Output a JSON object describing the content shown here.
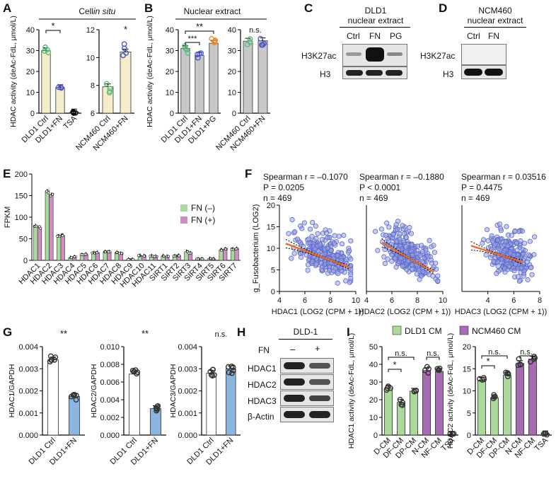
{
  "panel_labels": {
    "A": "A",
    "B": "B",
    "C": "C",
    "D": "D",
    "E": "E",
    "F": "F",
    "G": "G",
    "H": "H",
    "I": "I"
  },
  "chart_data": [
    {
      "id": "A1",
      "type": "bar",
      "title": "Cell in situ",
      "ylabel": "HDAC activity (deAc-FdL, μmol/L)",
      "categories": [
        "DLD1 Ctrl",
        "DLD1+FN",
        "TSA"
      ],
      "values": [
        30,
        12.3,
        0.6
      ],
      "ylim": [
        0,
        40
      ],
      "yticks": [
        "0",
        "10",
        "20",
        "30",
        "40"
      ],
      "sig": [
        {
          "from": 0,
          "to": 1,
          "label": "*"
        }
      ]
    },
    {
      "id": "A2",
      "type": "bar",
      "categories": [
        "NCM460 Ctrl",
        "NCM460+FN"
      ],
      "values": [
        7.9,
        10.4
      ],
      "ylim": [
        6,
        12
      ],
      "yticks": [
        "6",
        "8",
        "10",
        "12"
      ],
      "sig": [
        {
          "label": "*"
        }
      ]
    },
    {
      "id": "B1",
      "type": "bar",
      "title": "Nuclear extract",
      "ylabel": "HDAC activity (deAc-FdL, μmol/L)",
      "categories": [
        "DLD1 Ctrl",
        "DLD1+FN",
        "DLD1+PG"
      ],
      "values": [
        31,
        27.7,
        33.5
      ],
      "ylim": [
        0,
        40
      ],
      "yticks": [
        "0",
        "10",
        "20",
        "30",
        "40"
      ],
      "sig": [
        {
          "label": "***"
        },
        {
          "label": "**"
        }
      ]
    },
    {
      "id": "B2",
      "type": "bar",
      "categories": [
        "NCM460 Ctrl",
        "NCM460+FN"
      ],
      "values": [
        34.5,
        34.7
      ],
      "ylim": [
        0,
        40
      ],
      "yticks": [
        "0",
        "10",
        "20",
        "30",
        "40"
      ],
      "sig": [
        {
          "label": "n.s."
        }
      ]
    },
    {
      "id": "E",
      "type": "bar",
      "ylabel": "FPKM",
      "categories": [
        "HDAC1",
        "HDAC2",
        "HDAC3",
        "HDAC4",
        "HDAC5",
        "HDAC6",
        "HDAC7",
        "HDAC8",
        "HDAC9",
        "HDAC10",
        "HDAC11",
        "SIRT1",
        "SIRT2",
        "SIRT3",
        "SIRT4",
        "SIRT5",
        "SIRT6",
        "SIRT7"
      ],
      "series": [
        {
          "name": "FN (–)",
          "values": [
            80,
            160,
            56,
            6,
            13,
            17,
            20,
            18,
            2,
            11,
            10,
            10,
            10,
            20,
            3,
            4,
            24,
            26
          ]
        },
        {
          "name": "FN (+)",
          "values": [
            76,
            152,
            58,
            8,
            14,
            18,
            20,
            16,
            2,
            10,
            9,
            9,
            11,
            17,
            3,
            3,
            26,
            27
          ]
        }
      ],
      "ylim": [
        0,
        200
      ],
      "yticks": [
        "0",
        "50",
        "100",
        "150",
        "200"
      ]
    },
    {
      "id": "F1",
      "type": "scatter",
      "title": "Spearman r = –0.1070",
      "p": "P = 0.0205",
      "n": "n = 469",
      "xlabel": "HDAC1 (LOG2 (CPM + 1))",
      "ylabel": "g_Fusobacterium (LOG2)",
      "xlim": [
        4,
        10
      ],
      "ylim": [
        0,
        20
      ],
      "xticks": [
        "4",
        "6",
        "8",
        "10"
      ],
      "yticks": [
        "0",
        "5",
        "10",
        "15",
        "20"
      ],
      "fit": [
        [
          4.5,
          11.1
        ],
        [
          9.5,
          5.6
        ]
      ]
    },
    {
      "id": "F2",
      "type": "scatter",
      "title": "Spearman r = –0.1880",
      "p": "P < 0.0001",
      "n": "n = 469",
      "xlabel": "HDAC2 (LOG2 (CPM + 1))",
      "xlim": [
        4,
        10
      ],
      "ylim": [
        0,
        20
      ],
      "xticks": [
        "4",
        "6",
        "8",
        "10"
      ],
      "fit": [
        [
          5.2,
          11.3
        ],
        [
          9.3,
          4.5
        ]
      ]
    },
    {
      "id": "F3",
      "type": "scatter",
      "title": "Spearman r = 0.03516",
      "p": "P = 0.4475",
      "n": "n = 469",
      "xlabel": "HDAC3 (LOG2 (CPM + 1))",
      "xlim": [
        2,
        8
      ],
      "ylim": [
        0,
        20
      ],
      "xticks": [
        "4",
        "6",
        "8"
      ],
      "fit": [
        [
          2.7,
          10.6
        ],
        [
          6.7,
          6.8
        ]
      ]
    },
    {
      "id": "G1",
      "type": "bar",
      "ylabel": "HDAC1/GAPDH",
      "categories": [
        "DLD1 Ctrl",
        "DLD1+FN"
      ],
      "values": [
        0.0034,
        0.00175
      ],
      "ylim": [
        0,
        0.004
      ],
      "yticks": [
        "0.000",
        "0.001",
        "0.002",
        "0.003",
        "0.004"
      ],
      "sig": [
        {
          "label": "**"
        }
      ]
    },
    {
      "id": "G2",
      "type": "bar",
      "ylabel": "HDAC2/GAPDH",
      "categories": [
        "DLD1 Ctrl",
        "DLD1+FN"
      ],
      "values": [
        0.0069,
        0.003
      ],
      "ylim": [
        0,
        0.01
      ],
      "yticks": [
        "0.000",
        "0.002",
        "0.004",
        "0.006",
        "0.008",
        "0.010"
      ],
      "sig": [
        {
          "label": "**"
        }
      ]
    },
    {
      "id": "G3",
      "type": "bar",
      "ylabel": "HDAC3/GAPDH",
      "categories": [
        "DLD1 Ctrl",
        "DLD1+FN"
      ],
      "values": [
        0.0028,
        0.003
      ],
      "ylim": [
        0,
        0.004
      ],
      "yticks": [
        "0.000",
        "0.001",
        "0.002",
        "0.003",
        "0.004"
      ],
      "sig": [
        {
          "label": "n.s."
        }
      ]
    },
    {
      "id": "I1",
      "type": "bar",
      "ylabel": "HDAC1 activity (deAc-FdL, μmol/L)",
      "categories": [
        "D-CM",
        "DF-CM",
        "DP-CM",
        "N-CM",
        "NF-CM",
        "TSA"
      ],
      "values": [
        26.5,
        18.5,
        24.8,
        36.5,
        36,
        0.5
      ],
      "ylim": [
        0,
        50
      ],
      "yticks": [
        "0",
        "10",
        "20",
        "30",
        "40",
        "50"
      ],
      "sig": [
        {
          "label": "*"
        },
        {
          "label": "n.s."
        },
        {
          "label": "n.s."
        }
      ]
    },
    {
      "id": "I2",
      "type": "bar",
      "ylabel": "HDAC2 activity (deAc-FdL, μmol/L)",
      "categories": [
        "D-CM",
        "DF-CM",
        "DP-CM",
        "N-CM",
        "NF-CM",
        "TSA"
      ],
      "values": [
        12.4,
        8.4,
        13.5,
        16.2,
        17.2,
        0.3
      ],
      "ylim": [
        0,
        20
      ],
      "yticks": [
        "0",
        "5",
        "10",
        "15",
        "20"
      ],
      "sig": [
        {
          "label": "*"
        },
        {
          "label": "n.s."
        },
        {
          "label": "n.s."
        }
      ]
    }
  ],
  "colors": {
    "tan": "#f5ecca",
    "green": "#5dbb7c",
    "blue": "#4a56c8",
    "orange": "#f08a2e",
    "gray": "#c8c8c8",
    "fn_minus": "#a9d99b",
    "fn_plus": "#d18cc4",
    "scatter": "#5867c9",
    "fit": "#f26a22",
    "lightblue": "#8ab6e0",
    "cm_green": "#a9d99b",
    "cm_purple": "#a66bb1"
  },
  "legend_E": [
    "FN (–)",
    "FN (+)"
  ],
  "legend_I": [
    "DLD1 CM",
    "NCM460 CM"
  ],
  "blot_C": {
    "title": "DLD1",
    "subtitle": "nuclear extract",
    "lanes": [
      "Ctrl",
      "FN",
      "PG"
    ],
    "rows": [
      "H3K27ac",
      "H3"
    ]
  },
  "blot_D": {
    "title": "NCM460",
    "subtitle": "nuclear extract",
    "lanes": [
      "Ctrl",
      "FN"
    ],
    "rows": [
      "H3K27ac",
      "H3"
    ]
  },
  "blot_H": {
    "title": "DLD-1",
    "treatment": "FN",
    "lanes": [
      "–",
      "+"
    ],
    "rows": [
      "HDAC1",
      "HDAC2",
      "HDAC3",
      "β-Actin"
    ]
  }
}
